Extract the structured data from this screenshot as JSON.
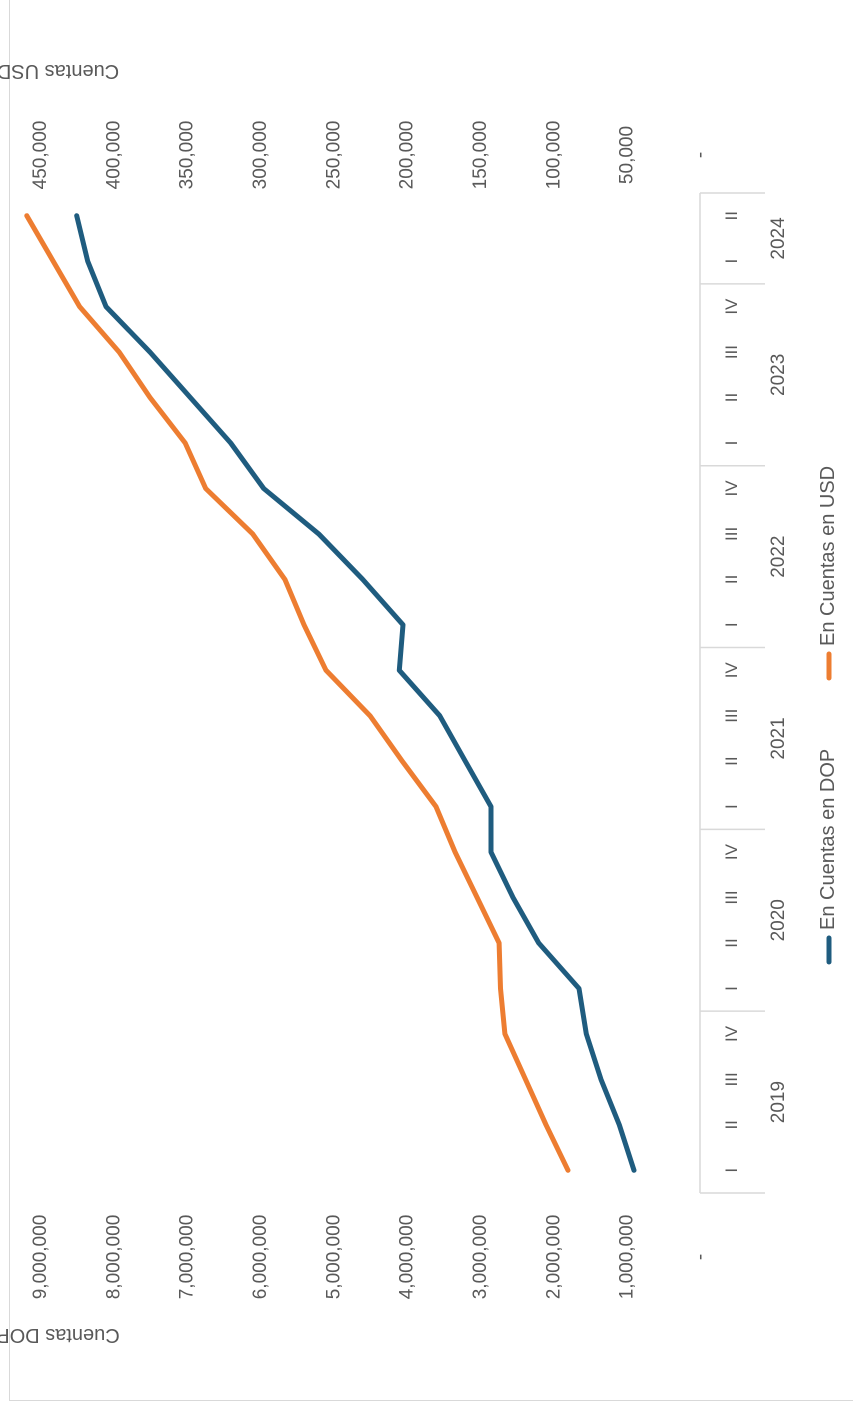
{
  "chart_data": {
    "type": "line",
    "orientation": "rotated-90-clockwise",
    "x": [
      "2019 I",
      "2019 II",
      "2019 III",
      "2019 IV",
      "2020 I",
      "2020 II",
      "2020 III",
      "2020 IV",
      "2021 I",
      "2021 II",
      "2021 III",
      "2021 IV",
      "2022 I",
      "2022 II",
      "2022 III",
      "2022 IV",
      "2023 I",
      "2023 II",
      "2023 III",
      "2023 IV",
      "2024 I",
      "2024 II"
    ],
    "years": [
      "2019",
      "2020",
      "2021",
      "2022",
      "2023",
      "2024"
    ],
    "quarter_labels": [
      "I",
      "II",
      "III",
      "IV",
      "I",
      "II",
      "III",
      "IV",
      "I",
      "II",
      "III",
      "IV",
      "I",
      "II",
      "III",
      "IV",
      "I",
      "II",
      "III",
      "IV",
      "I",
      "II"
    ],
    "series": [
      {
        "name": "En Cuentas en DOP",
        "axis": "left",
        "color": "#1f5c7f",
        "values": [
          900000,
          1100000,
          1350000,
          1550000,
          1650000,
          2200000,
          2550000,
          2850000,
          2850000,
          3200000,
          3550000,
          4100000,
          4050000,
          4600000,
          5200000,
          5950000,
          6400000,
          6950000,
          7500000,
          8100000,
          8350000,
          8500000
        ]
      },
      {
        "name": "En Cuentas en USD",
        "axis": "right",
        "color": "#ed7d31",
        "values": [
          90000,
          105000,
          119000,
          133000,
          136000,
          137000,
          152000,
          167000,
          180000,
          203000,
          225000,
          255000,
          270000,
          283000,
          305000,
          337000,
          351000,
          375000,
          396000,
          423000,
          441000,
          459000
        ]
      }
    ],
    "left_axis": {
      "title": "Cuentas DOP",
      "range": [
        0,
        9000000
      ],
      "tick_labels": [
        "-",
        "1,000,000",
        "2,000,000",
        "3,000,000",
        "4,000,000",
        "5,000,000",
        "6,000,000",
        "7,000,000",
        "8,000,000",
        "9,000,000"
      ]
    },
    "right_axis": {
      "title": "Cuentas USD",
      "range": [
        0,
        450000
      ],
      "tick_labels": [
        "-",
        "50,000",
        "100,000",
        "150,000",
        "200,000",
        "250,000",
        "300,000",
        "350,000",
        "400,000",
        "450,000"
      ]
    },
    "legend": {
      "position": "bottom"
    },
    "grid": false
  }
}
